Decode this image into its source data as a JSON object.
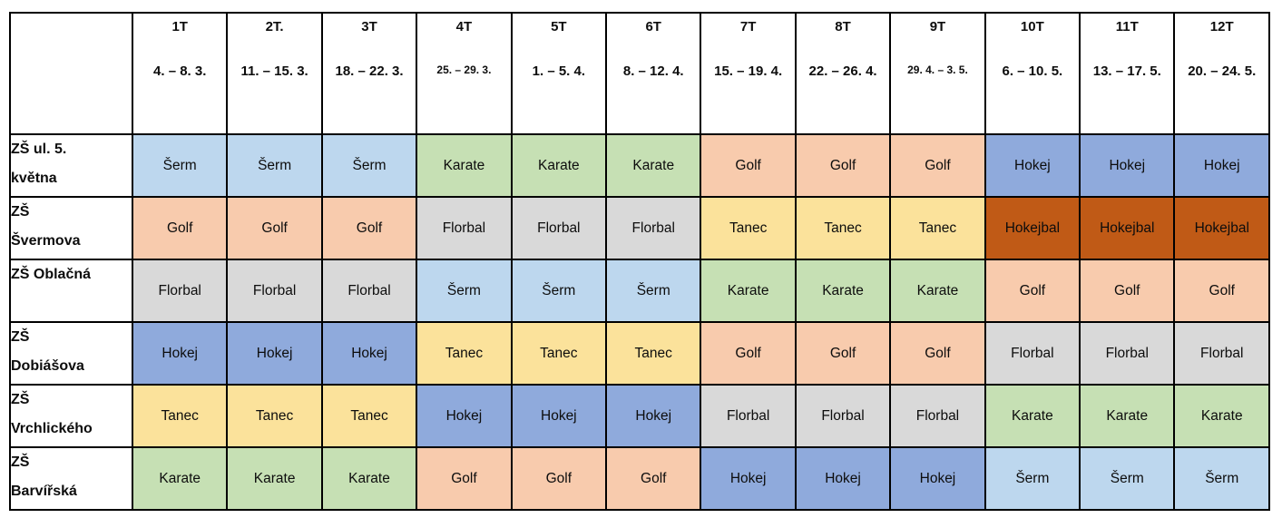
{
  "schedule": {
    "corner_label": "",
    "weeks": [
      {
        "code": "1T",
        "dates": "4. – 8. 3.",
        "small_date": false
      },
      {
        "code": "2T.",
        "dates": "11. – 15. 3.",
        "small_date": false
      },
      {
        "code": "3T",
        "dates": "18. – 22. 3.",
        "small_date": false
      },
      {
        "code": "4T",
        "dates": "25. – 29. 3.",
        "small_date": true
      },
      {
        "code": "5T",
        "dates": "1. – 5. 4.",
        "small_date": false
      },
      {
        "code": "6T",
        "dates": "8. – 12. 4.",
        "small_date": false
      },
      {
        "code": "7T",
        "dates": "15. – 19. 4.",
        "small_date": false
      },
      {
        "code": "8T",
        "dates": "22. – 26. 4.",
        "small_date": false
      },
      {
        "code": "9T",
        "dates": "29. 4. – 3. 5.",
        "small_date": true
      },
      {
        "code": "10T",
        "dates": "6. – 10. 5.",
        "small_date": false
      },
      {
        "code": "11T",
        "dates": "13. – 17. 5.",
        "small_date": false
      },
      {
        "code": "12T",
        "dates": "20. – 24. 5.",
        "small_date": false
      }
    ],
    "rows": [
      {
        "school": "ZŠ ul. 5.\nkvětna",
        "activities": [
          "Šerm",
          "Šerm",
          "Šerm",
          "Karate",
          "Karate",
          "Karate",
          "Golf",
          "Golf",
          "Golf",
          "Hokej",
          "Hokej",
          "Hokej"
        ]
      },
      {
        "school": "ZŠ\nŠvermova",
        "activities": [
          "Golf",
          "Golf",
          "Golf",
          "Florbal",
          "Florbal",
          "Florbal",
          "Tanec",
          "Tanec",
          "Tanec",
          "Hokejbal",
          "Hokejbal",
          "Hokejbal"
        ]
      },
      {
        "school": "ZŠ Oblačná",
        "activities": [
          "Florbal",
          "Florbal",
          "Florbal",
          "Šerm",
          "Šerm",
          "Šerm",
          "Karate",
          "Karate",
          "Karate",
          "Golf",
          "Golf",
          "Golf"
        ]
      },
      {
        "school": "ZŠ\nDobiášova",
        "activities": [
          "Hokej",
          "Hokej",
          "Hokej",
          "Tanec",
          "Tanec",
          "Tanec",
          "Golf",
          "Golf",
          "Golf",
          "Florbal",
          "Florbal",
          "Florbal"
        ]
      },
      {
        "school": "ZŠ\nVrchlického",
        "activities": [
          "Tanec",
          "Tanec",
          "Tanec",
          "Hokej",
          "Hokej",
          "Hokej",
          "Florbal",
          "Florbal",
          "Florbal",
          "Karate",
          "Karate",
          "Karate"
        ]
      },
      {
        "school": "ZŠ\nBarvířská",
        "activities": [
          "Karate",
          "Karate",
          "Karate",
          "Golf",
          "Golf",
          "Golf",
          "Hokej",
          "Hokej",
          "Hokej",
          "Šerm",
          "Šerm",
          "Šerm"
        ]
      }
    ]
  },
  "activity_colors": {
    "Šerm": "#BDD7EE",
    "Karate": "#C6E0B4",
    "Golf": "#F8CBAD",
    "Hokej": "#8FAADC",
    "Florbal": "#D9D9D9",
    "Tanec": "#FBE29B",
    "Hokejbal": "#C05A16"
  },
  "style_tokens": {
    "border_color": "#000000",
    "text_color": "#0d0d0d",
    "background_color": "#ffffff"
  }
}
